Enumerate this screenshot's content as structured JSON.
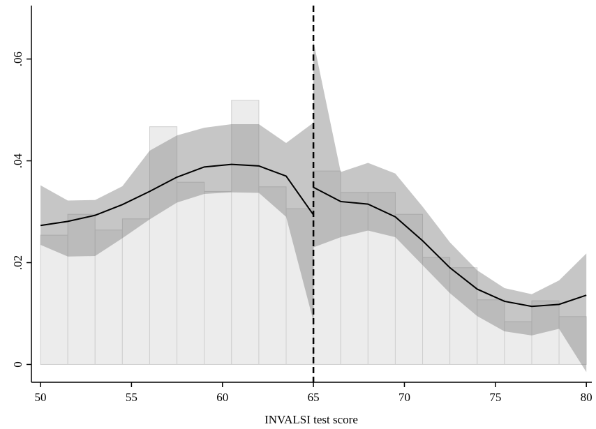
{
  "chart_data": {
    "type": "rdplot",
    "x_label": "INVALSI test score",
    "xlim": [
      49.5,
      80.3
    ],
    "ylim": [
      -0.0035,
      0.0705
    ],
    "xticks": [
      50,
      55,
      60,
      65,
      70,
      75,
      80
    ],
    "yticks": [
      0,
      {
        "value": 0.02,
        "label": ".02"
      },
      {
        "value": 0.04,
        "label": ".04"
      },
      {
        "value": 0.06,
        "label": ".06"
      }
    ],
    "cutoff": 65,
    "histogram": {
      "color": "#ececec",
      "bins": [
        50,
        51.5,
        53,
        54.5,
        56,
        57.5,
        59,
        60.5,
        62,
        63.5,
        65,
        66.5,
        68,
        69.5,
        71,
        72.5,
        74,
        75.5,
        77,
        78.5,
        80
      ],
      "values": [
        0.0254,
        0.0295,
        0.0264,
        0.0286,
        0.0467,
        0.0358,
        0.034,
        0.0519,
        0.0349,
        0.0306,
        0.038,
        0.0338,
        0.0338,
        0.0295,
        0.021,
        0.019,
        0.0127,
        0.0084,
        0.0125,
        0.0094
      ]
    },
    "band_color": "#787878",
    "line_color": "#000000",
    "fits": [
      {
        "x": [
          50,
          51.5,
          53,
          54.5,
          56,
          57.5,
          59,
          60.5,
          62,
          63.5,
          65
        ],
        "fit": [
          0.0273,
          0.0281,
          0.0293,
          0.0314,
          0.034,
          0.0368,
          0.0388,
          0.0393,
          0.039,
          0.037,
          0.0294
        ],
        "upper": [
          0.0352,
          0.0322,
          0.0323,
          0.035,
          0.042,
          0.045,
          0.0465,
          0.0472,
          0.0472,
          0.0435,
          0.0475
        ],
        "lower": [
          0.0235,
          0.0212,
          0.0213,
          0.0248,
          0.0285,
          0.0318,
          0.0335,
          0.0338,
          0.0337,
          0.029,
          0.0085
        ]
      },
      {
        "x": [
          65,
          66.5,
          68,
          69.5,
          71,
          72.5,
          74,
          75.5,
          77,
          78.5,
          80
        ],
        "fit": [
          0.0348,
          0.032,
          0.0315,
          0.029,
          0.0243,
          0.019,
          0.0148,
          0.0124,
          0.0114,
          0.0118,
          0.0136
        ],
        "upper": [
          0.0635,
          0.0378,
          0.0396,
          0.0375,
          0.031,
          0.024,
          0.0185,
          0.015,
          0.0138,
          0.0165,
          0.0218
        ],
        "lower": [
          0.023,
          0.025,
          0.0263,
          0.025,
          0.0195,
          0.014,
          0.0095,
          0.0065,
          0.0057,
          0.007,
          -0.0015
        ]
      }
    ]
  }
}
